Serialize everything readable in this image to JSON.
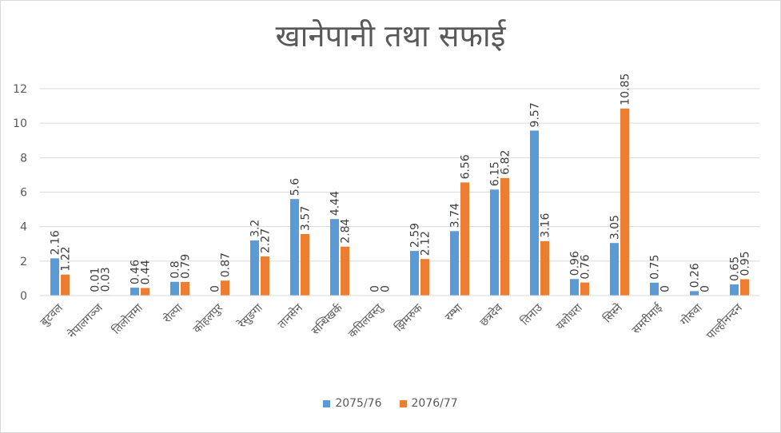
{
  "chart_data": {
    "type": "bar",
    "title": "खानेपानी तथा सफाई",
    "xlabel": "",
    "ylabel": "",
    "ylim": [
      0,
      12
    ],
    "yticks": [
      0,
      2,
      4,
      6,
      8,
      10,
      12
    ],
    "grid": true,
    "legend_position": "bottom",
    "categories": [
      "बुटवल",
      "नेपालगञ्ज",
      "तिलोत्तमा",
      "रोल्पा",
      "कोहलपुर",
      "रेसुङगा",
      "तानसेन",
      "सन्धिखर्क",
      "कपिलवस्तु",
      "झिमरुक",
      "रम्भा",
      "छत्रदेव",
      "तिनाउ",
      "यशोधरा",
      "सिस्ने",
      "समरीमाई",
      "गोरुवा",
      "पाल्हीनन्दन"
    ],
    "series": [
      {
        "name": "2075/76",
        "color": "#5b9bd5",
        "values": [
          2.16,
          0.01,
          0.46,
          0.8,
          0,
          3.2,
          5.6,
          4.44,
          0,
          2.59,
          3.74,
          6.15,
          9.57,
          0.96,
          3.05,
          0.75,
          0.26,
          0.65
        ],
        "labels": [
          "2.16",
          "0.01",
          "0.46",
          "0.8",
          "0",
          "3.2",
          "5.6",
          "4.44",
          "0",
          "2.59",
          "3.74",
          "6.15",
          "9.57",
          "0.96",
          "3.05",
          "0.75",
          "0.26",
          "0.65"
        ]
      },
      {
        "name": "2076/77",
        "color": "#ed7d31",
        "values": [
          1.22,
          0.03,
          0.44,
          0.79,
          0.87,
          2.27,
          3.57,
          2.84,
          0,
          2.12,
          6.56,
          6.82,
          3.16,
          0.76,
          10.85,
          0,
          0,
          0.95
        ],
        "labels": [
          "1.22",
          "0.03",
          "0.44",
          "0.79",
          "0.87",
          "2.27",
          "3.57",
          "2.84",
          "0",
          "2.12",
          "6.56",
          "6.82",
          "3.16",
          "0.76",
          "10.85",
          "0",
          "0",
          "0.95"
        ]
      }
    ]
  }
}
